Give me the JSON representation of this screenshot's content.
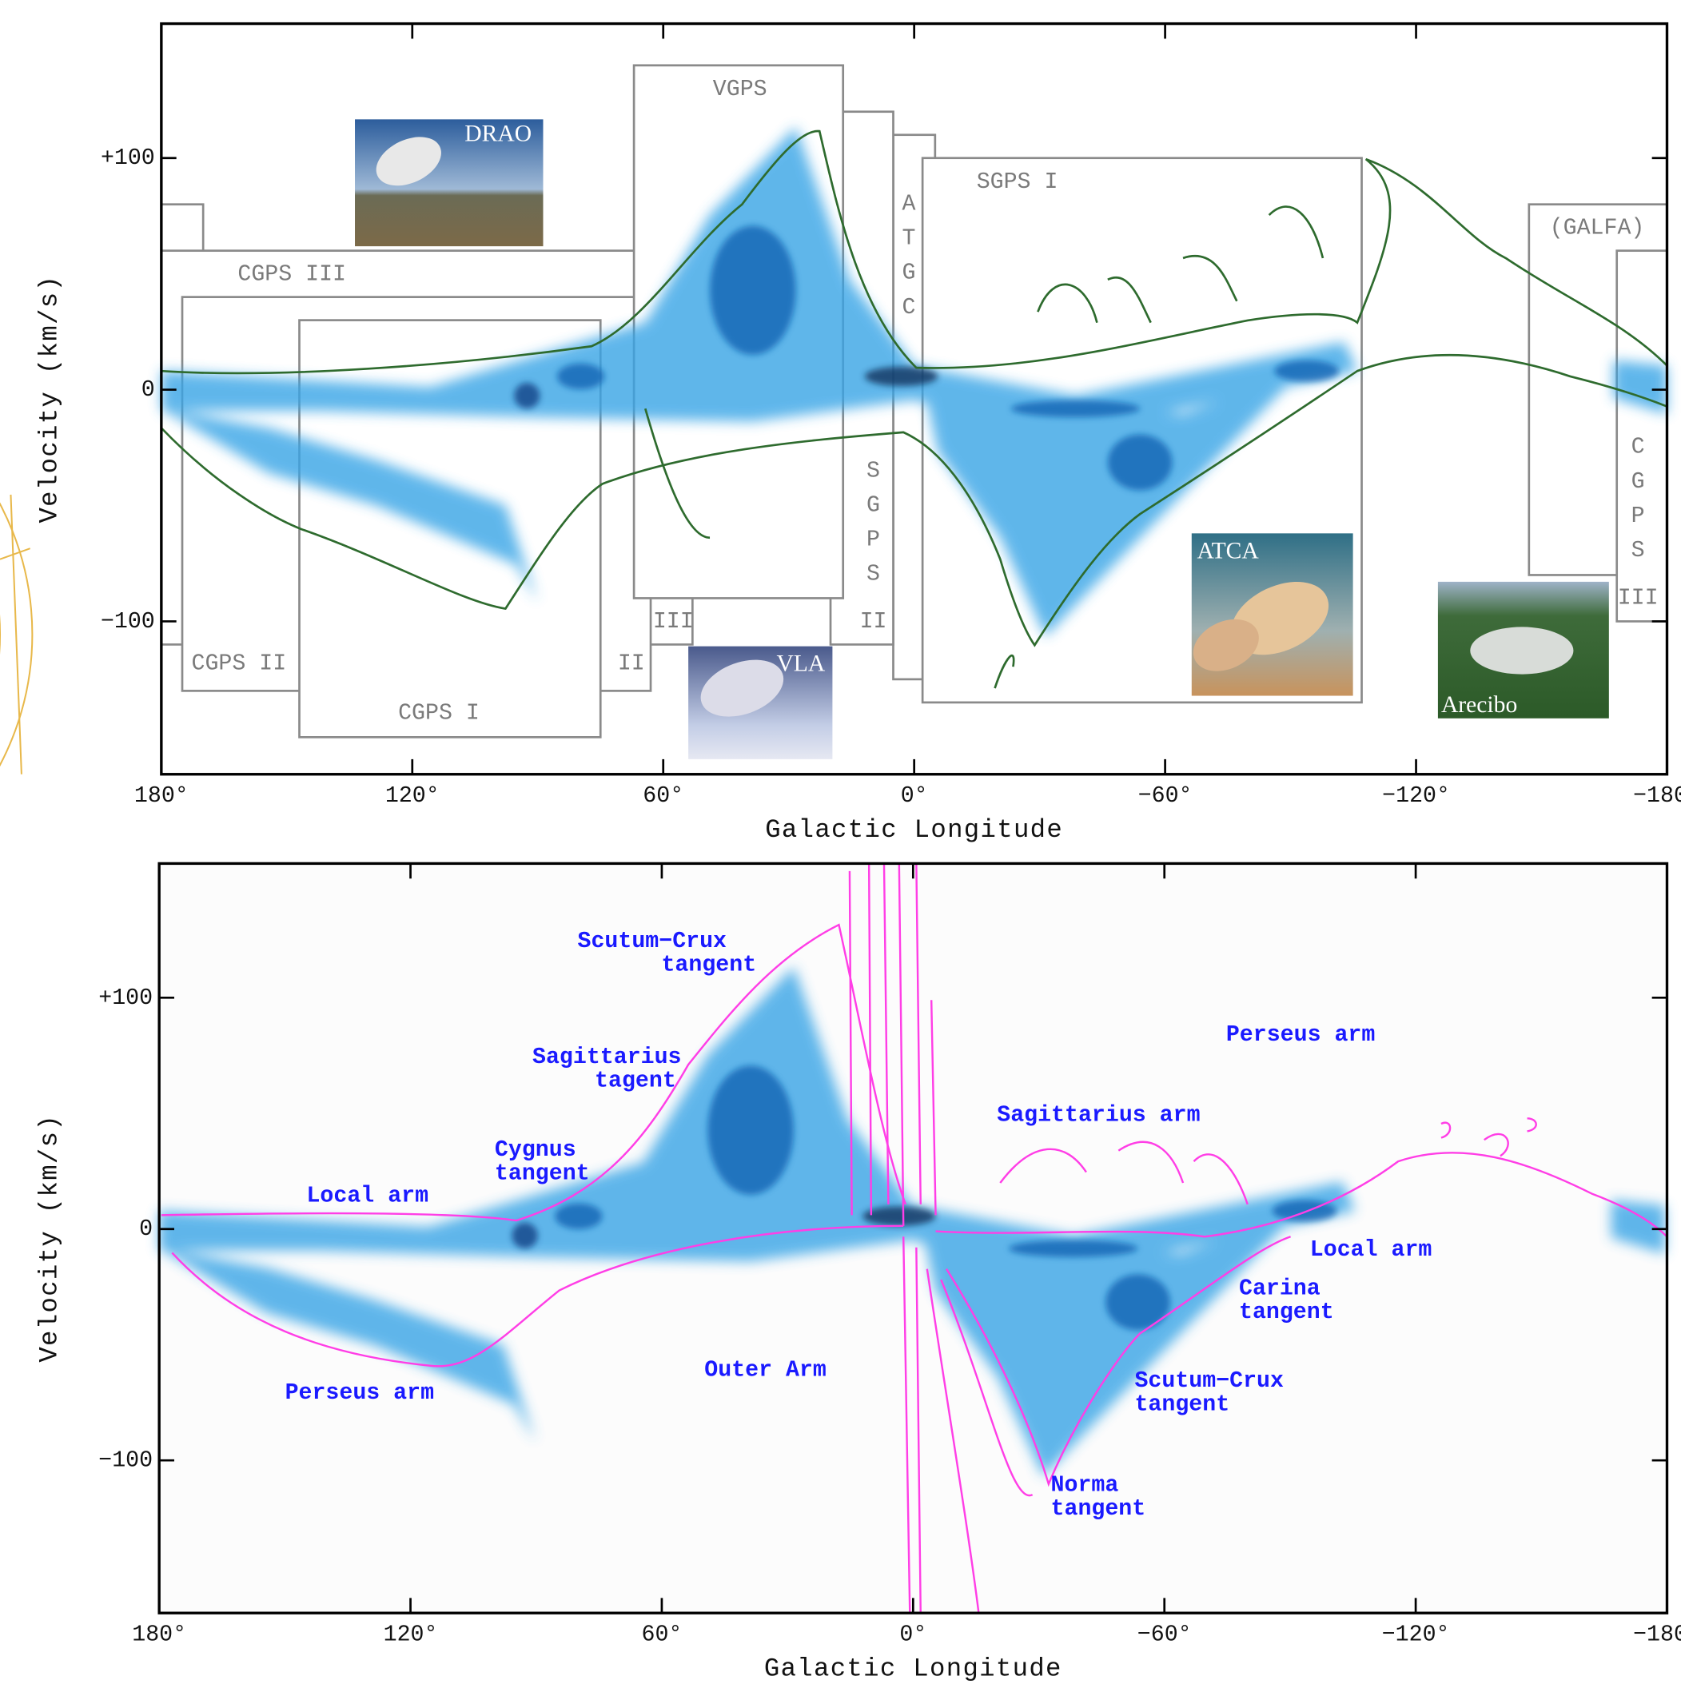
{
  "chart_data": [
    {
      "type": "contour",
      "xlabel": "Galactic Longitude",
      "ylabel": "Velocity (km/s)",
      "xlim": [
        180,
        -180
      ],
      "ylim": [
        -166,
        158
      ],
      "xticks": [
        {
          "value": 180,
          "label": "180°"
        },
        {
          "value": 120,
          "label": "120°"
        },
        {
          "value": 60,
          "label": "60°"
        },
        {
          "value": 0,
          "label": "0°"
        },
        {
          "value": -60,
          "label": "−60°"
        },
        {
          "value": -120,
          "label": "−120°"
        },
        {
          "value": -180,
          "label": "−180°"
        }
      ],
      "yticks": [
        {
          "value": 100,
          "label": "+100"
        },
        0,
        {
          "value": -100,
          "label": "−100"
        }
      ],
      "contour_color": "#2e6b2e",
      "surveys": [
        {
          "label": "CGPS III",
          "tag": "III",
          "lon": [
            180,
            53
          ],
          "vel": [
            60,
            -110
          ]
        },
        {
          "lon": [
            180,
            170
          ],
          "vel": [
            80,
            60
          ]
        },
        {
          "label": "CGPS II",
          "tag": "II",
          "lon": [
            175,
            63
          ],
          "vel": [
            40,
            -130
          ]
        },
        {
          "label": "CGPS I",
          "lon": [
            147,
            75
          ],
          "vel": [
            30,
            -150
          ]
        },
        {
          "label": "ATGC",
          "orientation": "vertical",
          "lon": [
            5,
            -5
          ],
          "vel": [
            110,
            -125
          ]
        },
        {
          "label": "SGPS",
          "tag": "II",
          "orientation": "vertical",
          "lon": [
            20,
            5
          ],
          "vel": [
            120,
            -110
          ]
        },
        {
          "label": "VGPS",
          "lon": [
            67,
            17
          ],
          "vel": [
            140,
            -90
          ]
        },
        {
          "label": "SGPS I",
          "lon": [
            -2,
            -107
          ],
          "vel": [
            100,
            -135
          ]
        },
        {
          "label": "(GALFA)",
          "lon": [
            -147,
            -180
          ],
          "vel": [
            80,
            -80
          ]
        },
        {
          "label": "CGPS",
          "tag": "III",
          "orientation": "vertical",
          "lon": [
            -168,
            -180
          ],
          "vel": [
            60,
            -100
          ]
        }
      ],
      "photos": [
        {
          "label": "DRAO"
        },
        {
          "label": "VLA"
        },
        {
          "label": "ATCA"
        },
        {
          "label": "Arecibo"
        }
      ]
    },
    {
      "type": "contour",
      "xlabel": "Galactic Longitude",
      "ylabel": "Velocity (km/s)",
      "xlim": [
        180,
        -180
      ],
      "ylim": [
        -166,
        158
      ],
      "xticks": [
        {
          "value": 180,
          "label": "180°"
        },
        {
          "value": 120,
          "label": "120°"
        },
        {
          "value": 60,
          "label": "60°"
        },
        {
          "value": 0,
          "label": "0°"
        },
        {
          "value": -60,
          "label": "−60°"
        },
        {
          "value": -120,
          "label": "−120°"
        },
        {
          "value": -180,
          "label": "−180°"
        }
      ],
      "yticks": [
        {
          "value": 100,
          "label": "+100"
        },
        0,
        {
          "value": -100,
          "label": "−100"
        }
      ],
      "contour_color": "#ff3ee6",
      "annotation_color": "#1a1aff",
      "annotations": [
        {
          "lines": [
            "Scutum−Crux",
            "tangent"
          ]
        },
        {
          "lines": [
            "Sagittarius",
            "tagent"
          ]
        },
        {
          "lines": [
            "Cygnus",
            "tangent"
          ]
        },
        {
          "lines": [
            "Local arm"
          ]
        },
        {
          "lines": [
            "Perseus arm"
          ]
        },
        {
          "lines": [
            "Outer Arm"
          ]
        },
        {
          "lines": [
            "Perseus arm"
          ]
        },
        {
          "lines": [
            "Sagittarius arm"
          ]
        },
        {
          "lines": [
            "Local arm"
          ]
        },
        {
          "lines": [
            "Carina",
            "tangent"
          ]
        },
        {
          "lines": [
            "Scutum−Crux",
            "tangent"
          ]
        },
        {
          "lines": [
            "Norma",
            "tangent"
          ]
        }
      ]
    }
  ]
}
